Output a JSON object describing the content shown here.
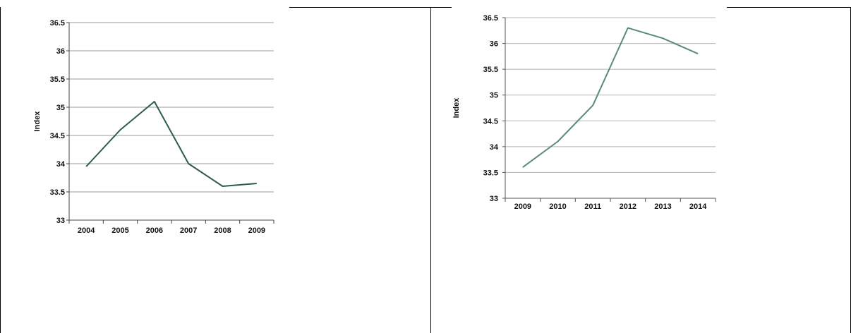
{
  "chart_data": [
    {
      "type": "line",
      "title": "",
      "xlabel": "",
      "ylabel": "Index",
      "categories": [
        "2004",
        "2005",
        "2006",
        "2007",
        "2008",
        "2009"
      ],
      "series": [
        {
          "values": [
            33.95,
            34.6,
            35.1,
            34.0,
            33.6,
            33.65
          ]
        }
      ],
      "ylim": [
        33,
        36.5
      ],
      "y_ticks": [
        "33",
        "33.5",
        "34",
        "34.5",
        "35",
        "35.5",
        "36",
        "36.5"
      ],
      "grid": true,
      "line_color": "#2e5b4a"
    },
    {
      "type": "line",
      "title": "",
      "xlabel": "",
      "ylabel": "Index",
      "categories": [
        "2009",
        "2010",
        "2011",
        "2012",
        "2013",
        "2014"
      ],
      "series": [
        {
          "values": [
            33.6,
            34.1,
            34.8,
            36.3,
            36.1,
            35.8
          ]
        }
      ],
      "ylim": [
        33,
        36.5
      ],
      "y_ticks": [
        "33",
        "33.5",
        "34",
        "34.5",
        "35",
        "35.5",
        "36",
        "36.5"
      ],
      "grid": true,
      "line_color": "#5a8a7a"
    }
  ]
}
